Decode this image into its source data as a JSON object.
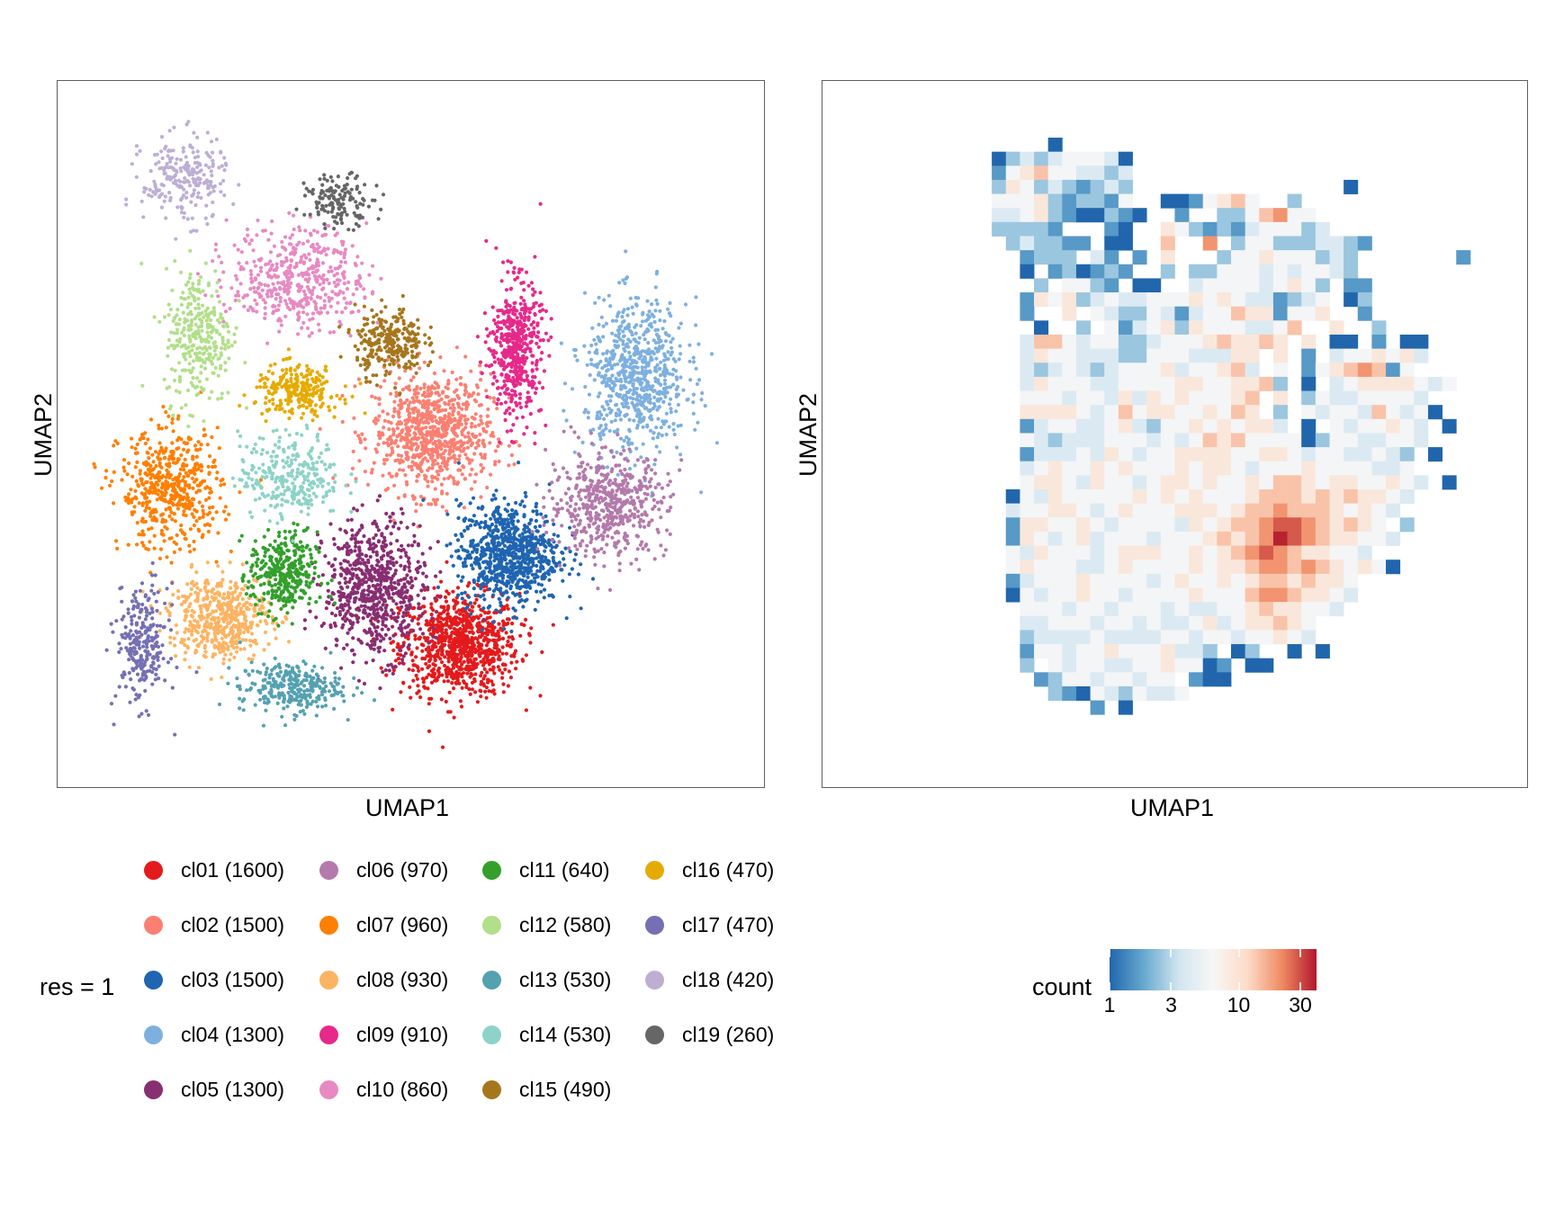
{
  "panels": {
    "left": {
      "xlabel": "UMAP1",
      "ylabel": "UMAP2"
    },
    "right": {
      "xlabel": "UMAP1",
      "ylabel": "UMAP2"
    }
  },
  "legend": {
    "title": "res = 1",
    "items": [
      {
        "label": "cl01 (1600)",
        "color": "#E41A1C"
      },
      {
        "label": "cl02 (1500)",
        "color": "#FB8072"
      },
      {
        "label": "cl03 (1500)",
        "color": "#1F65B1"
      },
      {
        "label": "cl04 (1300)",
        "color": "#7EB0DF"
      },
      {
        "label": "cl05 (1300)",
        "color": "#882E72"
      },
      {
        "label": "cl06 (970)",
        "color": "#B37AAB"
      },
      {
        "label": "cl07 (960)",
        "color": "#FF7F00"
      },
      {
        "label": "cl08 (930)",
        "color": "#FDB462"
      },
      {
        "label": "cl09 (910)",
        "color": "#E7298A"
      },
      {
        "label": "cl10 (860)",
        "color": "#E78AC3"
      },
      {
        "label": "cl11 (640)",
        "color": "#33A02C"
      },
      {
        "label": "cl12 (580)",
        "color": "#B2DF8A"
      },
      {
        "label": "cl13 (530)",
        "color": "#55A1B1"
      },
      {
        "label": "cl14 (530)",
        "color": "#8DD3C7"
      },
      {
        "label": "cl15 (490)",
        "color": "#A6761D"
      },
      {
        "label": "cl16 (470)",
        "color": "#E6AB02"
      },
      {
        "label": "cl17 (470)",
        "color": "#7570B3"
      },
      {
        "label": "cl18 (420)",
        "color": "#BEAED4"
      },
      {
        "label": "cl19 (260)",
        "color": "#666666"
      }
    ]
  },
  "colorbar": {
    "title": "count",
    "ticks": [
      "1",
      "3",
      "10",
      "30"
    ],
    "tick_values": [
      1,
      3,
      10,
      30
    ],
    "range": [
      1,
      40
    ],
    "scale": "log",
    "colors": [
      "#2166AC",
      "#67A9CF",
      "#D1E5F0",
      "#F7F7F7",
      "#FDDBC7",
      "#EF8A62",
      "#B2182B"
    ]
  },
  "chart_data": [
    {
      "type": "scatter",
      "title": "",
      "xlabel": "UMAP1",
      "ylabel": "UMAP2",
      "xlim": [
        0,
        100
      ],
      "ylim": [
        0,
        100
      ],
      "grid": false,
      "legend_position": "bottom",
      "series": [
        {
          "name": "cl01",
          "n": 1600,
          "center": [
            57,
            20
          ],
          "spread": [
            7,
            6
          ]
        },
        {
          "name": "cl02",
          "n": 1500,
          "center": [
            53,
            50
          ],
          "spread": [
            7,
            7
          ]
        },
        {
          "name": "cl03",
          "n": 1500,
          "center": [
            64,
            33
          ],
          "spread": [
            6,
            6
          ]
        },
        {
          "name": "cl04",
          "n": 1300,
          "center": [
            82,
            58
          ],
          "spread": [
            6,
            9
          ]
        },
        {
          "name": "cl05",
          "n": 1300,
          "center": [
            45,
            28
          ],
          "spread": [
            6,
            8
          ]
        },
        {
          "name": "cl06",
          "n": 970,
          "center": [
            78,
            40
          ],
          "spread": [
            7,
            6
          ]
        },
        {
          "name": "cl07",
          "n": 960,
          "center": [
            16,
            42
          ],
          "spread": [
            6,
            7
          ]
        },
        {
          "name": "cl08",
          "n": 930,
          "center": [
            23,
            24
          ],
          "spread": [
            6,
            5
          ]
        },
        {
          "name": "cl09",
          "n": 910,
          "center": [
            65,
            62
          ],
          "spread": [
            3,
            8
          ]
        },
        {
          "name": "cl10",
          "n": 860,
          "center": [
            34,
            72
          ],
          "spread": [
            8,
            6
          ]
        },
        {
          "name": "cl11",
          "n": 640,
          "center": [
            32,
            30
          ],
          "spread": [
            4,
            5
          ]
        },
        {
          "name": "cl12",
          "n": 580,
          "center": [
            20,
            64
          ],
          "spread": [
            4,
            8
          ]
        },
        {
          "name": "cl13",
          "n": 530,
          "center": [
            33,
            14
          ],
          "spread": [
            6,
            3
          ]
        },
        {
          "name": "cl14",
          "n": 530,
          "center": [
            33,
            44
          ],
          "spread": [
            6,
            5
          ]
        },
        {
          "name": "cl15",
          "n": 490,
          "center": [
            47,
            63
          ],
          "spread": [
            4,
            4
          ]
        },
        {
          "name": "cl16",
          "n": 470,
          "center": [
            34,
            56
          ],
          "spread": [
            5,
            3
          ]
        },
        {
          "name": "cl17",
          "n": 470,
          "center": [
            12,
            20
          ],
          "spread": [
            3,
            7
          ]
        },
        {
          "name": "cl18",
          "n": 420,
          "center": [
            18,
            86
          ],
          "spread": [
            5,
            5
          ]
        },
        {
          "name": "cl19",
          "n": 260,
          "center": [
            40,
            83
          ],
          "spread": [
            4,
            3
          ]
        }
      ]
    },
    {
      "type": "heatmap",
      "title": "",
      "xlabel": "UMAP1",
      "ylabel": "UMAP2",
      "value_name": "count",
      "scale": "log",
      "levels": {
        "1": 1,
        "2": 1.6,
        "3": 2.5,
        "4": 4,
        "5": 6,
        "6": 9,
        "7": 14,
        "8": 20,
        "9": 28,
        "X": 38
      },
      "rows": [
        "............1.............................",
        "........1343455541........................",
        "........2567554434........................",
        "........3653432343...............1........",
        "........5556323325..1125675..3............",
        "........44563211321..2..3357855...........",
        "........33332...21..653232455534..........",
        ".........343322.11..7..8.3553334432.......",
        "..........2333.42.2.6...3556555343.......2",
        "..........1.231232..3.335554545543.........",
        "...........3.5532.11..4555545653.22......",
        "..........2656345445556565442345.13.......",
        "..........2..6.54335424557662556..2.......",
        "...........1..3.52456365554457..6..3......",
        "..........4775455334555676676.6.11.2.11...",
        "..........46554443355544466.6.2.4556564...",
        "..........43454345556455674.5.25678725....",
        "..........4655544555566556673.1.456666545.",
        "..........55545546465655567.6.354455554..",
        "..........66665457566556576.3.5455475451.",
        "..........2455445643556565664.1.5455654.1.",
        "..........54344455545457675555135544554...",
        "..........2444546545566665566545544543.1..",
        "..........4565565655565665455565555445.....",
        "..........56654655456656556577656655654.1.",
        ".........15465555565656555677767676654.....",
        ".........4556654565556665677877765654......",
        ".........266556545555465677899876765.3....",
        ".........2654564555455567678X98766554.....",
        ".........54655545666556567898766554.......",
        ".........5655544565555656678878765651......",
        ".........2455565555456556567767665.........",
        ".........1545565545555655578876654.........",
        "..........55545545554544556766554..........",
        "..........445554554544564566765............",
        "..........344445444455455455654............",
        "..........25545565556443.13..1.1...........",
        "..........3.5455445565512.11...............",
        "...........2355455455.211..................",
        "............3215435445.....................",
        "...............2.1.........................",
        "......................................... "
      ]
    }
  ]
}
